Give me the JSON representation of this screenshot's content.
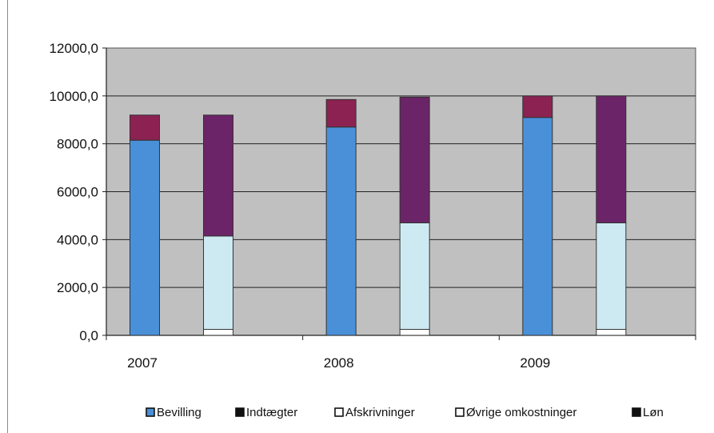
{
  "chart_data": {
    "type": "bar",
    "stacked": true,
    "categories": [
      "2007",
      "2008",
      "2009"
    ],
    "y_ticks": [
      "12000,0",
      "10000,0",
      "8000,0",
      "6000,0",
      "4000,0",
      "2000,0",
      "0,0"
    ],
    "ylim": [
      0,
      12000
    ],
    "grid": true,
    "legend_position": "bottom",
    "legend": [
      "Bevilling",
      "Indtægter",
      "Afskrivninger",
      "Øvrige omkostninger",
      "Løn"
    ],
    "income_bars": [
      {
        "category": "2007",
        "segments": [
          {
            "name": "Bevilling",
            "value": 8150
          },
          {
            "name": "Indtægter",
            "value": 1050
          }
        ]
      },
      {
        "category": "2008",
        "segments": [
          {
            "name": "Bevilling",
            "value": 8700
          },
          {
            "name": "Indtægter",
            "value": 1150
          }
        ]
      },
      {
        "category": "2009",
        "segments": [
          {
            "name": "Bevilling",
            "value": 9100
          },
          {
            "name": "Indtægter",
            "value": 900
          }
        ]
      }
    ],
    "expense_bars": [
      {
        "category": "2007",
        "segments": [
          {
            "name": "Afskrivninger",
            "value": 250
          },
          {
            "name": "Øvrige omkostninger",
            "value": 3900
          },
          {
            "name": "Løn",
            "value": 5050
          }
        ]
      },
      {
        "category": "2008",
        "segments": [
          {
            "name": "Afskrivninger",
            "value": 250
          },
          {
            "name": "Øvrige omkostninger",
            "value": 4450
          },
          {
            "name": "Løn",
            "value": 5250
          }
        ]
      },
      {
        "category": "2009",
        "segments": [
          {
            "name": "Afskrivninger",
            "value": 250
          },
          {
            "name": "Øvrige omkostninger",
            "value": 4450
          },
          {
            "name": "Løn",
            "value": 5300
          }
        ]
      }
    ],
    "colors": {
      "Bevilling": "#4a90d9",
      "Indtægter": "#8b2252",
      "Afskrivninger": "#ffffff",
      "Øvrige omkostninger": "#cdeaf2",
      "Løn": "#6b2467"
    },
    "legend_swatch_colors": {
      "Bevilling": "#4a90d9",
      "Indtægter": "#111111",
      "Afskrivninger": "#ffffff",
      "Øvrige omkostninger": "#ffffff",
      "Løn": "#111111"
    },
    "plot_background": "#c0c0c0"
  }
}
